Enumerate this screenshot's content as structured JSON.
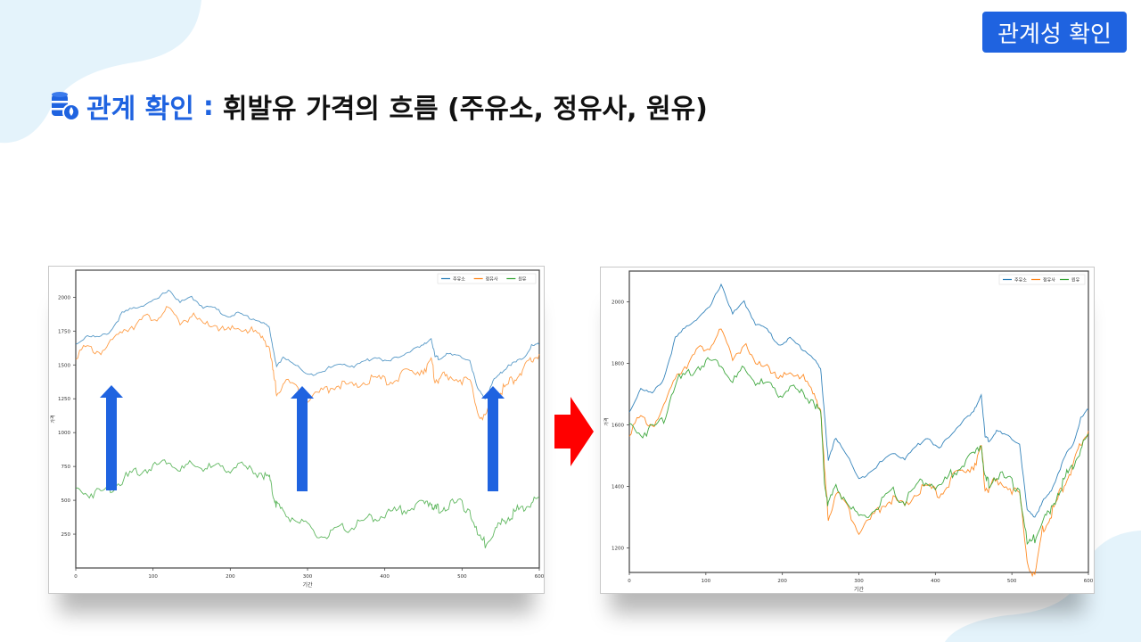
{
  "badge": {
    "label": "관계성 확인"
  },
  "heading": {
    "accent": "관계 확인",
    "separator": ":",
    "rest": "휘발유 가격의 흐름 (주유소, 정유사, 원유)"
  },
  "icons": {
    "heading_icon": "oil-barrel-coins-icon",
    "transition_arrow": "arrow-right-icon",
    "up_arrows": "arrow-up-icon"
  },
  "colors": {
    "accent": "#1f63e0",
    "series_blue": "#1f77b4",
    "series_orange": "#ff7f0e",
    "series_green": "#2ca02c",
    "arrow_up": "#1f63e0",
    "arrow_right": "#ff0000"
  },
  "chart_data": [
    {
      "type": "line",
      "xlabel": "기간",
      "ylabel": "가격",
      "xlim": [
        0,
        600
      ],
      "ylim": [
        0,
        2200
      ],
      "xticks": [
        0,
        100,
        200,
        300,
        400,
        500,
        600
      ],
      "yticks": [
        250,
        500,
        750,
        1000,
        1250,
        1500,
        1750,
        2000
      ],
      "legend": "top-right",
      "series": [
        {
          "name": "주유소",
          "color": "#1f77b4",
          "x": [
            0,
            15,
            30,
            45,
            60,
            75,
            90,
            105,
            120,
            135,
            150,
            165,
            180,
            195,
            210,
            225,
            240,
            250,
            255,
            260,
            270,
            285,
            300,
            315,
            330,
            345,
            360,
            375,
            390,
            405,
            420,
            435,
            450,
            460,
            465,
            470,
            480,
            495,
            510,
            520,
            530,
            540,
            550,
            560,
            570,
            580,
            590,
            600
          ],
          "y": [
            1650,
            1720,
            1700,
            1750,
            1880,
            1920,
            1950,
            1980,
            2060,
            1960,
            2000,
            1930,
            1920,
            1860,
            1880,
            1850,
            1820,
            1780,
            1640,
            1480,
            1560,
            1500,
            1420,
            1450,
            1480,
            1510,
            1490,
            1530,
            1560,
            1520,
            1570,
            1610,
            1640,
            1700,
            1560,
            1550,
            1580,
            1560,
            1540,
            1320,
            1250,
            1380,
            1440,
            1500,
            1520,
            1560,
            1640,
            1650
          ]
        },
        {
          "name": "정유사",
          "color": "#ff7f0e",
          "x": [
            0,
            15,
            30,
            45,
            60,
            75,
            90,
            105,
            120,
            135,
            150,
            165,
            180,
            195,
            210,
            225,
            240,
            250,
            255,
            260,
            270,
            285,
            300,
            315,
            330,
            345,
            360,
            375,
            390,
            405,
            420,
            435,
            450,
            460,
            465,
            470,
            480,
            495,
            510,
            520,
            530,
            540,
            550,
            560,
            570,
            580,
            590,
            600
          ],
          "y": [
            1580,
            1620,
            1600,
            1650,
            1760,
            1800,
            1840,
            1860,
            1900,
            1820,
            1860,
            1790,
            1800,
            1740,
            1770,
            1760,
            1700,
            1660,
            1450,
            1300,
            1380,
            1330,
            1260,
            1290,
            1340,
            1360,
            1330,
            1380,
            1400,
            1370,
            1420,
            1450,
            1470,
            1520,
            1400,
            1390,
            1420,
            1400,
            1370,
            1160,
            1100,
            1260,
            1300,
            1360,
            1420,
            1460,
            1540,
            1580
          ]
        },
        {
          "name": "원유",
          "color": "#2ca02c",
          "x": [
            0,
            15,
            30,
            45,
            60,
            75,
            90,
            105,
            120,
            135,
            150,
            165,
            180,
            195,
            210,
            225,
            240,
            250,
            255,
            260,
            270,
            285,
            300,
            315,
            330,
            345,
            360,
            375,
            390,
            405,
            420,
            435,
            450,
            460,
            465,
            470,
            480,
            495,
            510,
            520,
            530,
            540,
            550,
            560,
            570,
            580,
            590,
            600
          ],
          "y": [
            580,
            550,
            560,
            590,
            650,
            700,
            730,
            760,
            800,
            720,
            760,
            740,
            740,
            730,
            760,
            720,
            700,
            670,
            560,
            470,
            400,
            360,
            300,
            230,
            250,
            290,
            310,
            350,
            380,
            400,
            430,
            450,
            470,
            490,
            430,
            440,
            460,
            480,
            430,
            240,
            180,
            270,
            320,
            380,
            420,
            450,
            480,
            520
          ]
        }
      ]
    },
    {
      "type": "line",
      "xlabel": "기간",
      "ylabel": "가격",
      "xlim": [
        0,
        600
      ],
      "ylim": [
        1120,
        2100
      ],
      "xticks": [
        0,
        100,
        200,
        300,
        400,
        500,
        600
      ],
      "yticks": [
        1200,
        1400,
        1600,
        1800,
        2000
      ],
      "legend": "top-right",
      "series": [
        {
          "name": "주유소",
          "color": "#1f77b4",
          "x": [
            0,
            15,
            30,
            45,
            60,
            75,
            90,
            105,
            120,
            135,
            150,
            165,
            180,
            195,
            210,
            225,
            240,
            250,
            255,
            260,
            270,
            285,
            300,
            315,
            330,
            345,
            360,
            375,
            390,
            405,
            420,
            435,
            450,
            460,
            465,
            470,
            480,
            495,
            510,
            520,
            530,
            540,
            550,
            560,
            570,
            580,
            590,
            600
          ],
          "y": [
            1640,
            1720,
            1700,
            1750,
            1880,
            1920,
            1950,
            1980,
            2060,
            1960,
            2000,
            1930,
            1910,
            1860,
            1880,
            1850,
            1820,
            1780,
            1640,
            1480,
            1560,
            1500,
            1420,
            1450,
            1480,
            1510,
            1490,
            1530,
            1560,
            1520,
            1570,
            1610,
            1640,
            1700,
            1560,
            1550,
            1580,
            1560,
            1540,
            1320,
            1300,
            1350,
            1380,
            1440,
            1500,
            1540,
            1620,
            1650
          ]
        },
        {
          "name": "정유사",
          "color": "#ff7f0e",
          "x": [
            0,
            15,
            30,
            45,
            60,
            75,
            90,
            105,
            120,
            135,
            150,
            165,
            180,
            195,
            210,
            225,
            240,
            250,
            255,
            260,
            270,
            285,
            300,
            315,
            330,
            345,
            360,
            375,
            390,
            405,
            420,
            435,
            450,
            460,
            465,
            470,
            480,
            495,
            510,
            520,
            530,
            540,
            550,
            560,
            570,
            580,
            590,
            600
          ],
          "y": [
            1580,
            1620,
            1600,
            1650,
            1760,
            1800,
            1840,
            1860,
            1900,
            1820,
            1860,
            1790,
            1800,
            1740,
            1770,
            1760,
            1700,
            1660,
            1450,
            1300,
            1380,
            1330,
            1260,
            1290,
            1340,
            1360,
            1330,
            1380,
            1400,
            1370,
            1420,
            1450,
            1470,
            1520,
            1400,
            1390,
            1420,
            1400,
            1370,
            1160,
            1100,
            1260,
            1300,
            1360,
            1420,
            1460,
            1540,
            1580
          ]
        },
        {
          "name": "원유",
          "color": "#2ca02c",
          "x": [
            0,
            15,
            30,
            45,
            60,
            75,
            90,
            105,
            120,
            135,
            150,
            165,
            180,
            195,
            210,
            225,
            240,
            250,
            255,
            260,
            270,
            285,
            300,
            315,
            330,
            345,
            360,
            375,
            390,
            405,
            420,
            435,
            450,
            460,
            465,
            470,
            480,
            495,
            510,
            520,
            530,
            540,
            550,
            560,
            570,
            580,
            590,
            600
          ],
          "y": [
            1600,
            1570,
            1590,
            1620,
            1740,
            1760,
            1790,
            1810,
            1800,
            1740,
            1780,
            1740,
            1730,
            1700,
            1720,
            1700,
            1680,
            1640,
            1420,
            1340,
            1400,
            1350,
            1290,
            1310,
            1350,
            1380,
            1350,
            1400,
            1420,
            1390,
            1440,
            1470,
            1500,
            1540,
            1420,
            1410,
            1440,
            1420,
            1390,
            1210,
            1230,
            1300,
            1310,
            1380,
            1430,
            1470,
            1520,
            1570
          ]
        }
      ]
    }
  ]
}
